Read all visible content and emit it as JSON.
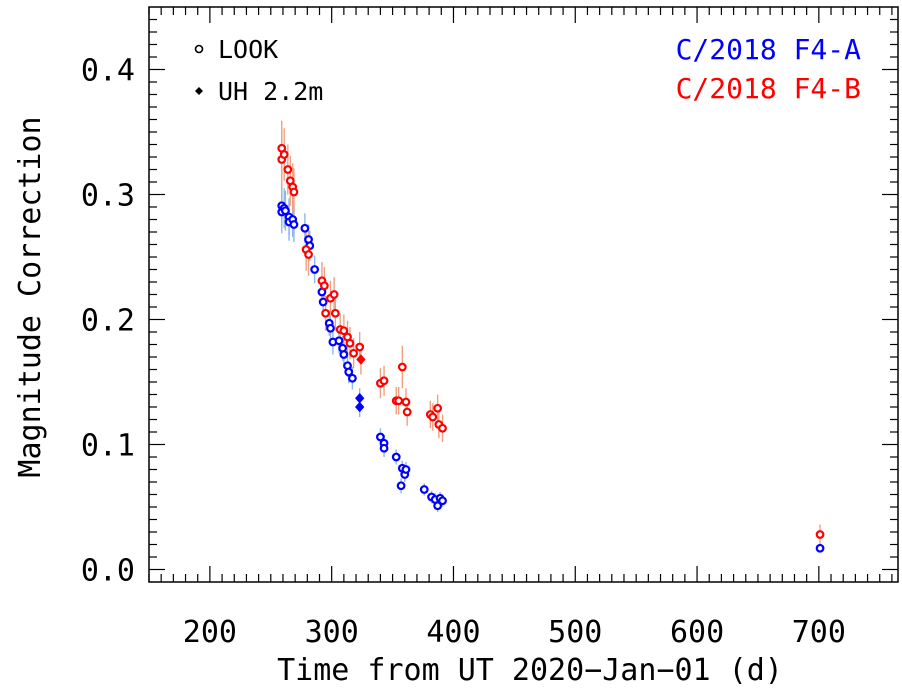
{
  "chart_data": {
    "type": "scatter",
    "xlabel": "Time from UT 2020−Jan−01 (d)",
    "ylabel": "Magnitude Correction",
    "xlim": [
      150,
      765
    ],
    "ylim": [
      -0.01,
      0.45
    ],
    "x_ticks": [
      200,
      300,
      400,
      500,
      600,
      700
    ],
    "x_tick_labels": [
      "200",
      "300",
      "400",
      "500",
      "600",
      "700"
    ],
    "y_ticks": [
      0.0,
      0.1,
      0.2,
      0.3,
      0.4
    ],
    "y_tick_labels": [
      "0.0",
      "0.1",
      "0.2",
      "0.3",
      "0.4"
    ],
    "grid": false,
    "legend": {
      "placement": "top-left",
      "entries": [
        {
          "label": "LOOK",
          "marker": "circle"
        },
        {
          "label": "UH 2.2m",
          "marker": "diamond"
        }
      ]
    },
    "series": [
      {
        "name": "C/2018 F4-A",
        "color": "#0000ff",
        "errorbar_color": "#8fb8e8",
        "points": [
          {
            "x": 259,
            "y": 0.291,
            "err": 0.017,
            "marker": "circle"
          },
          {
            "x": 259,
            "y": 0.286,
            "err": 0.017,
            "marker": "circle"
          },
          {
            "x": 261,
            "y": 0.289,
            "err": 0.016,
            "marker": "circle"
          },
          {
            "x": 262,
            "y": 0.287,
            "err": 0.016,
            "marker": "circle"
          },
          {
            "x": 265,
            "y": 0.282,
            "err": 0.015,
            "marker": "circle"
          },
          {
            "x": 265,
            "y": 0.278,
            "err": 0.015,
            "marker": "circle"
          },
          {
            "x": 268,
            "y": 0.28,
            "err": 0.014,
            "marker": "circle"
          },
          {
            "x": 269,
            "y": 0.276,
            "err": 0.014,
            "marker": "circle"
          },
          {
            "x": 278,
            "y": 0.273,
            "err": 0.012,
            "marker": "circle"
          },
          {
            "x": 281,
            "y": 0.264,
            "err": 0.012,
            "marker": "circle"
          },
          {
            "x": 282,
            "y": 0.259,
            "err": 0.012,
            "marker": "circle"
          },
          {
            "x": 286,
            "y": 0.24,
            "err": 0.011,
            "marker": "circle"
          },
          {
            "x": 292,
            "y": 0.222,
            "err": 0.011,
            "marker": "circle"
          },
          {
            "x": 293,
            "y": 0.214,
            "err": 0.011,
            "marker": "circle"
          },
          {
            "x": 298,
            "y": 0.197,
            "err": 0.01,
            "marker": "circle"
          },
          {
            "x": 299,
            "y": 0.193,
            "err": 0.01,
            "marker": "circle"
          },
          {
            "x": 301,
            "y": 0.182,
            "err": 0.01,
            "marker": "circle"
          },
          {
            "x": 306,
            "y": 0.183,
            "err": 0.01,
            "marker": "circle"
          },
          {
            "x": 309,
            "y": 0.177,
            "err": 0.01,
            "marker": "circle"
          },
          {
            "x": 310,
            "y": 0.172,
            "err": 0.01,
            "marker": "circle"
          },
          {
            "x": 313,
            "y": 0.163,
            "err": 0.009,
            "marker": "circle"
          },
          {
            "x": 314,
            "y": 0.158,
            "err": 0.009,
            "marker": "circle"
          },
          {
            "x": 317,
            "y": 0.153,
            "err": 0.009,
            "marker": "circle"
          },
          {
            "x": 323,
            "y": 0.137,
            "err": 0.008,
            "marker": "diamond"
          },
          {
            "x": 323,
            "y": 0.13,
            "err": 0.008,
            "marker": "diamond"
          },
          {
            "x": 340,
            "y": 0.106,
            "err": 0.007,
            "marker": "circle"
          },
          {
            "x": 343,
            "y": 0.101,
            "err": 0.007,
            "marker": "circle"
          },
          {
            "x": 343,
            "y": 0.097,
            "err": 0.007,
            "marker": "circle"
          },
          {
            "x": 353,
            "y": 0.09,
            "err": 0.006,
            "marker": "circle"
          },
          {
            "x": 358,
            "y": 0.081,
            "err": 0.006,
            "marker": "circle"
          },
          {
            "x": 360,
            "y": 0.076,
            "err": 0.006,
            "marker": "circle"
          },
          {
            "x": 357,
            "y": 0.067,
            "err": 0.006,
            "marker": "circle"
          },
          {
            "x": 361,
            "y": 0.08,
            "err": 0.006,
            "marker": "circle"
          },
          {
            "x": 376,
            "y": 0.064,
            "err": 0.005,
            "marker": "circle"
          },
          {
            "x": 382,
            "y": 0.058,
            "err": 0.005,
            "marker": "circle"
          },
          {
            "x": 385,
            "y": 0.056,
            "err": 0.005,
            "marker": "circle"
          },
          {
            "x": 387,
            "y": 0.051,
            "err": 0.005,
            "marker": "circle"
          },
          {
            "x": 389,
            "y": 0.057,
            "err": 0.005,
            "marker": "circle"
          },
          {
            "x": 391,
            "y": 0.055,
            "err": 0.005,
            "marker": "circle"
          },
          {
            "x": 701,
            "y": 0.017,
            "err": 0.003,
            "marker": "circle"
          }
        ]
      },
      {
        "name": "C/2018 F4-B",
        "color": "#ff0000",
        "errorbar_color": "#f0a080",
        "points": [
          {
            "x": 259,
            "y": 0.337,
            "err": 0.022,
            "marker": "circle"
          },
          {
            "x": 259,
            "y": 0.328,
            "err": 0.022,
            "marker": "circle"
          },
          {
            "x": 261,
            "y": 0.332,
            "err": 0.021,
            "marker": "circle"
          },
          {
            "x": 264,
            "y": 0.32,
            "err": 0.02,
            "marker": "circle"
          },
          {
            "x": 266,
            "y": 0.311,
            "err": 0.02,
            "marker": "circle"
          },
          {
            "x": 268,
            "y": 0.306,
            "err": 0.019,
            "marker": "circle"
          },
          {
            "x": 269,
            "y": 0.302,
            "err": 0.019,
            "marker": "circle"
          },
          {
            "x": 279,
            "y": 0.256,
            "err": 0.017,
            "marker": "circle"
          },
          {
            "x": 281,
            "y": 0.252,
            "err": 0.017,
            "marker": "circle"
          },
          {
            "x": 292,
            "y": 0.231,
            "err": 0.015,
            "marker": "circle"
          },
          {
            "x": 294,
            "y": 0.227,
            "err": 0.015,
            "marker": "circle"
          },
          {
            "x": 295,
            "y": 0.205,
            "err": 0.014,
            "marker": "circle"
          },
          {
            "x": 299,
            "y": 0.217,
            "err": 0.014,
            "marker": "circle"
          },
          {
            "x": 302,
            "y": 0.22,
            "err": 0.014,
            "marker": "circle"
          },
          {
            "x": 303,
            "y": 0.205,
            "err": 0.014,
            "marker": "circle"
          },
          {
            "x": 307,
            "y": 0.192,
            "err": 0.013,
            "marker": "circle"
          },
          {
            "x": 310,
            "y": 0.191,
            "err": 0.013,
            "marker": "circle"
          },
          {
            "x": 313,
            "y": 0.186,
            "err": 0.013,
            "marker": "circle"
          },
          {
            "x": 315,
            "y": 0.181,
            "err": 0.013,
            "marker": "circle"
          },
          {
            "x": 318,
            "y": 0.173,
            "err": 0.012,
            "marker": "circle"
          },
          {
            "x": 323,
            "y": 0.178,
            "err": 0.012,
            "marker": "circle"
          },
          {
            "x": 324,
            "y": 0.168,
            "err": 0.012,
            "marker": "diamond"
          },
          {
            "x": 340,
            "y": 0.149,
            "err": 0.012,
            "marker": "circle"
          },
          {
            "x": 343,
            "y": 0.151,
            "err": 0.012,
            "marker": "circle"
          },
          {
            "x": 353,
            "y": 0.135,
            "err": 0.011,
            "marker": "circle"
          },
          {
            "x": 355,
            "y": 0.135,
            "err": 0.011,
            "marker": "circle"
          },
          {
            "x": 358,
            "y": 0.162,
            "err": 0.017,
            "marker": "circle"
          },
          {
            "x": 361,
            "y": 0.134,
            "err": 0.011,
            "marker": "circle"
          },
          {
            "x": 362,
            "y": 0.126,
            "err": 0.011,
            "marker": "circle"
          },
          {
            "x": 381,
            "y": 0.124,
            "err": 0.011,
            "marker": "circle"
          },
          {
            "x": 383,
            "y": 0.122,
            "err": 0.011,
            "marker": "circle"
          },
          {
            "x": 387,
            "y": 0.129,
            "err": 0.011,
            "marker": "circle"
          },
          {
            "x": 388,
            "y": 0.116,
            "err": 0.011,
            "marker": "circle"
          },
          {
            "x": 391,
            "y": 0.113,
            "err": 0.011,
            "marker": "circle"
          },
          {
            "x": 701,
            "y": 0.028,
            "err": 0.008,
            "marker": "circle"
          }
        ]
      }
    ]
  }
}
